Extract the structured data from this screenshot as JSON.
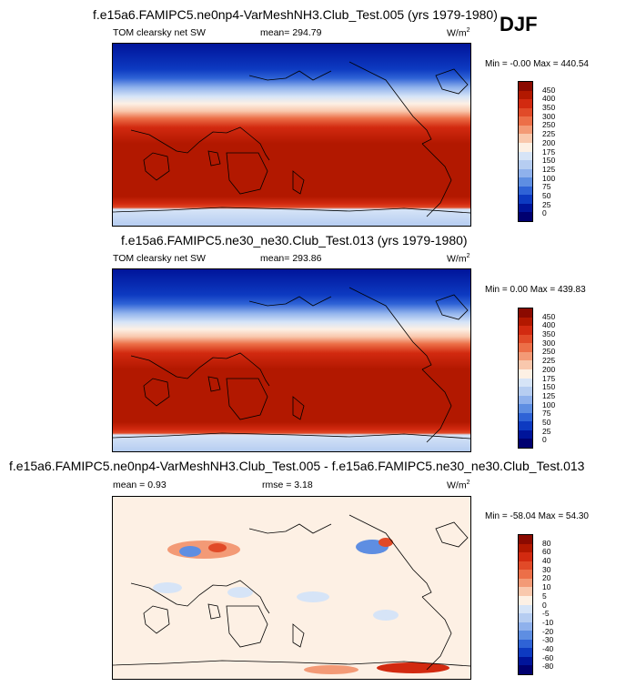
{
  "season": "DJF",
  "panels": [
    {
      "title": "f.e15a6.FAMIPC5.ne0np4-VarMeshNH3.Club_Test.005 (yrs 1979-1980)",
      "left": "TOM clearsky net SW",
      "mean": "mean= 294.79",
      "rmse": "",
      "units": "W/m",
      "units_sup": "2",
      "minmax": "Min = -0.00 Max = 440.54",
      "levels": [
        "450",
        "400",
        "350",
        "300",
        "250",
        "225",
        "200",
        "175",
        "150",
        "125",
        "100",
        "75",
        "50",
        "25",
        "0"
      ],
      "colors": [
        "#8b0a00",
        "#b21800",
        "#d22a10",
        "#e14a28",
        "#ec6f48",
        "#f39a76",
        "#f9c8ad",
        "#fdf0e4",
        "#d6e4f7",
        "#b6cdf1",
        "#8fb1ec",
        "#5e8ee2",
        "#2f63d6",
        "#0d3ac1",
        "#00149a",
        "#000070"
      ]
    },
    {
      "title": "f.e15a6.FAMIPC5.ne30_ne30.Club_Test.013 (yrs 1979-1980)",
      "left": "TOM clearsky net SW",
      "mean": "mean= 293.86",
      "rmse": "",
      "units": "W/m",
      "units_sup": "2",
      "minmax": "Min =  0.00 Max = 439.83",
      "levels": [
        "450",
        "400",
        "350",
        "300",
        "250",
        "225",
        "200",
        "175",
        "150",
        "125",
        "100",
        "75",
        "50",
        "25",
        "0"
      ],
      "colors": [
        "#8b0a00",
        "#b21800",
        "#d22a10",
        "#e14a28",
        "#ec6f48",
        "#f39a76",
        "#f9c8ad",
        "#fdf0e4",
        "#d6e4f7",
        "#b6cdf1",
        "#8fb1ec",
        "#5e8ee2",
        "#2f63d6",
        "#0d3ac1",
        "#00149a",
        "#000070"
      ]
    },
    {
      "title": "f.e15a6.FAMIPC5.ne0np4-VarMeshNH3.Club_Test.005 - f.e15a6.FAMIPC5.ne30_ne30.Club_Test.013",
      "left": "mean =   0.93",
      "mean": "",
      "rmse": "rmse =   3.18",
      "units": "W/m",
      "units_sup": "2",
      "minmax": "Min = -58.04 Max =  54.30",
      "levels": [
        "80",
        "60",
        "40",
        "30",
        "20",
        "10",
        "5",
        "0",
        "-5",
        "-10",
        "-20",
        "-30",
        "-40",
        "-60",
        "-80"
      ],
      "colors": [
        "#8b0a00",
        "#b21800",
        "#d22a10",
        "#e14a28",
        "#ec6f48",
        "#f39a76",
        "#f9c8ad",
        "#fdf0e4",
        "#d6e4f7",
        "#b6cdf1",
        "#8fb1ec",
        "#5e8ee2",
        "#2f63d6",
        "#0d3ac1",
        "#00149a",
        "#000070"
      ]
    }
  ]
}
